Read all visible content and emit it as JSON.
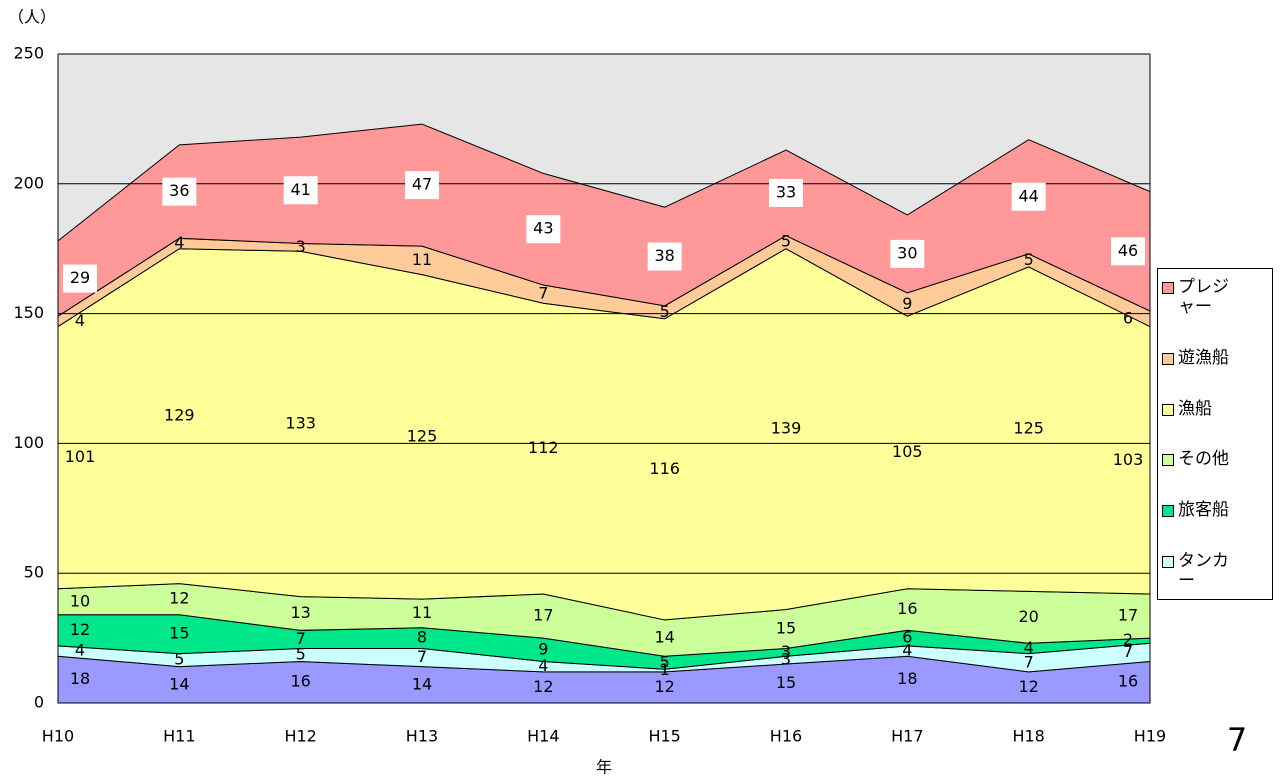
{
  "chart_data": {
    "type": "stacked_area",
    "y_axis_label": "（人）",
    "x_axis_label": "年",
    "page_number": "7",
    "categories": [
      "H10",
      "H11",
      "H12",
      "H13",
      "H14",
      "H15",
      "H16",
      "H17",
      "H18",
      "H19"
    ],
    "series": [
      {
        "color": "#9999ff",
        "values": [
          18,
          14,
          16,
          14,
          12,
          12,
          15,
          18,
          12,
          16
        ]
      },
      {
        "name": "タンカー",
        "color": "#ccffff",
        "values": [
          4,
          5,
          5,
          7,
          4,
          1,
          3,
          4,
          7,
          7
        ]
      },
      {
        "name": "旅客船",
        "color": "#00e68a",
        "values": [
          12,
          15,
          7,
          8,
          9,
          5,
          3,
          6,
          4,
          2
        ]
      },
      {
        "name": "その他",
        "color": "#ccff99",
        "values": [
          10,
          12,
          13,
          11,
          17,
          14,
          15,
          16,
          20,
          17
        ]
      },
      {
        "name": "漁船",
        "color": "#ffff99",
        "values": [
          101,
          129,
          133,
          125,
          112,
          116,
          139,
          105,
          125,
          103
        ]
      },
      {
        "name": "遊漁船",
        "color": "#ffcc99",
        "values": [
          4,
          4,
          3,
          11,
          7,
          5,
          5,
          9,
          5,
          6
        ]
      },
      {
        "name": "プレジャー",
        "color": "#ff9999",
        "values": [
          29,
          36,
          41,
          47,
          43,
          38,
          33,
          30,
          44,
          46
        ]
      }
    ],
    "ylim": [
      0,
      250
    ],
    "yticks": [
      0,
      50,
      100,
      150,
      200,
      250
    ],
    "grid": true
  }
}
